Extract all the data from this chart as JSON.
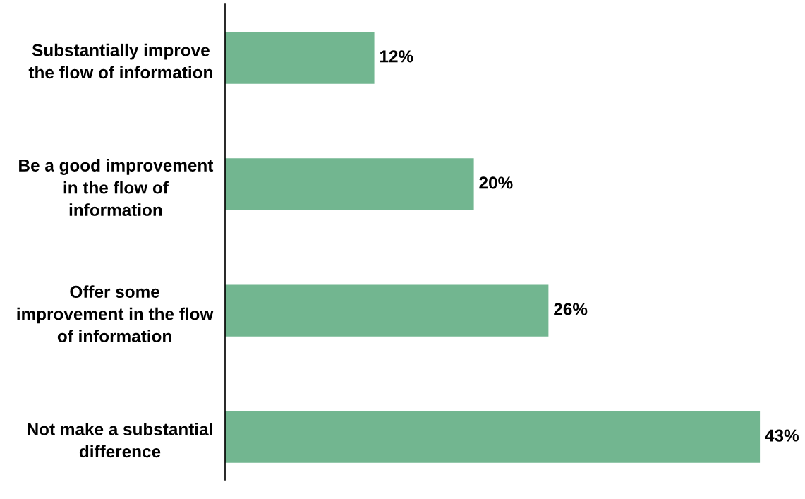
{
  "chart_data": {
    "type": "bar",
    "orientation": "horizontal",
    "categories": [
      "Substantially improve\nthe flow of information",
      "Be a good improvement\nin the flow of\ninformation",
      "Offer some\nimprovement in the flow\nof information",
      "Not make a substantial\ndifference"
    ],
    "values": [
      12,
      20,
      26,
      43
    ],
    "value_labels": [
      "12%",
      "20%",
      "26%",
      "43%"
    ],
    "color": "#72b690",
    "grid": false,
    "legend": false,
    "tick_labels": "y"
  }
}
